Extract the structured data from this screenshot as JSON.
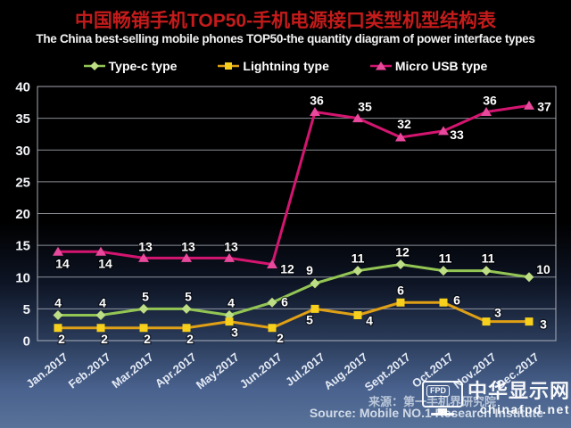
{
  "header": {
    "title_zh": "中国畅销手机TOP50-手机电源接口类型机型结构表",
    "title_en": "The China best-selling mobile phones TOP50-the quantity diagram of power interface types",
    "title_color": "#c41b1b"
  },
  "chart_data": {
    "type": "line",
    "title": "中国畅销手机TOP50-手机电源接口类型机型结构表",
    "subtitle": "The China best-selling mobile phones TOP50-the quantity diagram of power interface types",
    "categories": [
      "Jan.2017",
      "Feb.2017",
      "Mar.2017",
      "Apr.2017",
      "May.2017",
      "Jun.2017",
      "Jul.2017",
      "Aug.2017",
      "Sept.2017",
      "Oct.2017",
      "Nov.2017",
      "Dec.2017"
    ],
    "series": [
      {
        "name": "Type-c type",
        "marker": "diamond",
        "line_color": "#93c554",
        "marker_color": "#bede85",
        "values": [
          4,
          4,
          5,
          5,
          4,
          6,
          9,
          11,
          12,
          11,
          11,
          10
        ],
        "label_offsets": [
          [
            0,
            -9
          ],
          [
            2,
            -9
          ],
          [
            2,
            -9
          ],
          [
            2,
            -9
          ],
          [
            2,
            -9
          ],
          [
            14,
            4
          ],
          [
            -6,
            -10
          ],
          [
            0,
            -9
          ],
          [
            2,
            -9
          ],
          [
            2,
            -9
          ],
          [
            2,
            -9
          ],
          [
            16,
            -4
          ]
        ]
      },
      {
        "name": "Lightning type",
        "marker": "square",
        "line_color": "#dfa016",
        "marker_color": "#f6d01c",
        "values": [
          2,
          2,
          2,
          2,
          3,
          2,
          5,
          4,
          6,
          6,
          3,
          3
        ],
        "label_offsets": [
          [
            4,
            17
          ],
          [
            4,
            17
          ],
          [
            4,
            17
          ],
          [
            4,
            17
          ],
          [
            6,
            17
          ],
          [
            9,
            16
          ],
          [
            -6,
            17
          ],
          [
            13,
            11
          ],
          [
            0,
            -9
          ],
          [
            15,
            2
          ],
          [
            13,
            -5
          ],
          [
            16,
            8
          ]
        ]
      },
      {
        "name": "Micro USB type",
        "marker": "triangle",
        "line_color": "#d41570",
        "marker_color": "#e9499c",
        "values": [
          14,
          14,
          13,
          13,
          13,
          12,
          36,
          35,
          32,
          33,
          36,
          37
        ],
        "label_offsets": [
          [
            5,
            18
          ],
          [
            5,
            18
          ],
          [
            2,
            -8
          ],
          [
            2,
            -8
          ],
          [
            2,
            -8
          ],
          [
            17,
            10
          ],
          [
            2,
            -8
          ],
          [
            8,
            -8
          ],
          [
            4,
            -10
          ],
          [
            15,
            9
          ],
          [
            4,
            -8
          ],
          [
            17,
            6
          ]
        ]
      }
    ],
    "ylim": [
      0,
      40
    ],
    "ytick_step": 5,
    "yticks": [
      0,
      5,
      10,
      15,
      20,
      25,
      30,
      35,
      40
    ],
    "grid": true,
    "legend_position": "top",
    "grid_color": "#b9bdc6",
    "axis_label_color": "#e3e9f4",
    "data_label_color": "#ffffff"
  },
  "source": {
    "line1": "来源：第一手机界研究院",
    "line2": "Source: Mobile NO.1 Research Institute"
  },
  "logo": {
    "badge": "FPD",
    "name_zh": "中华显示网",
    "domain": "chinafpd.net"
  }
}
